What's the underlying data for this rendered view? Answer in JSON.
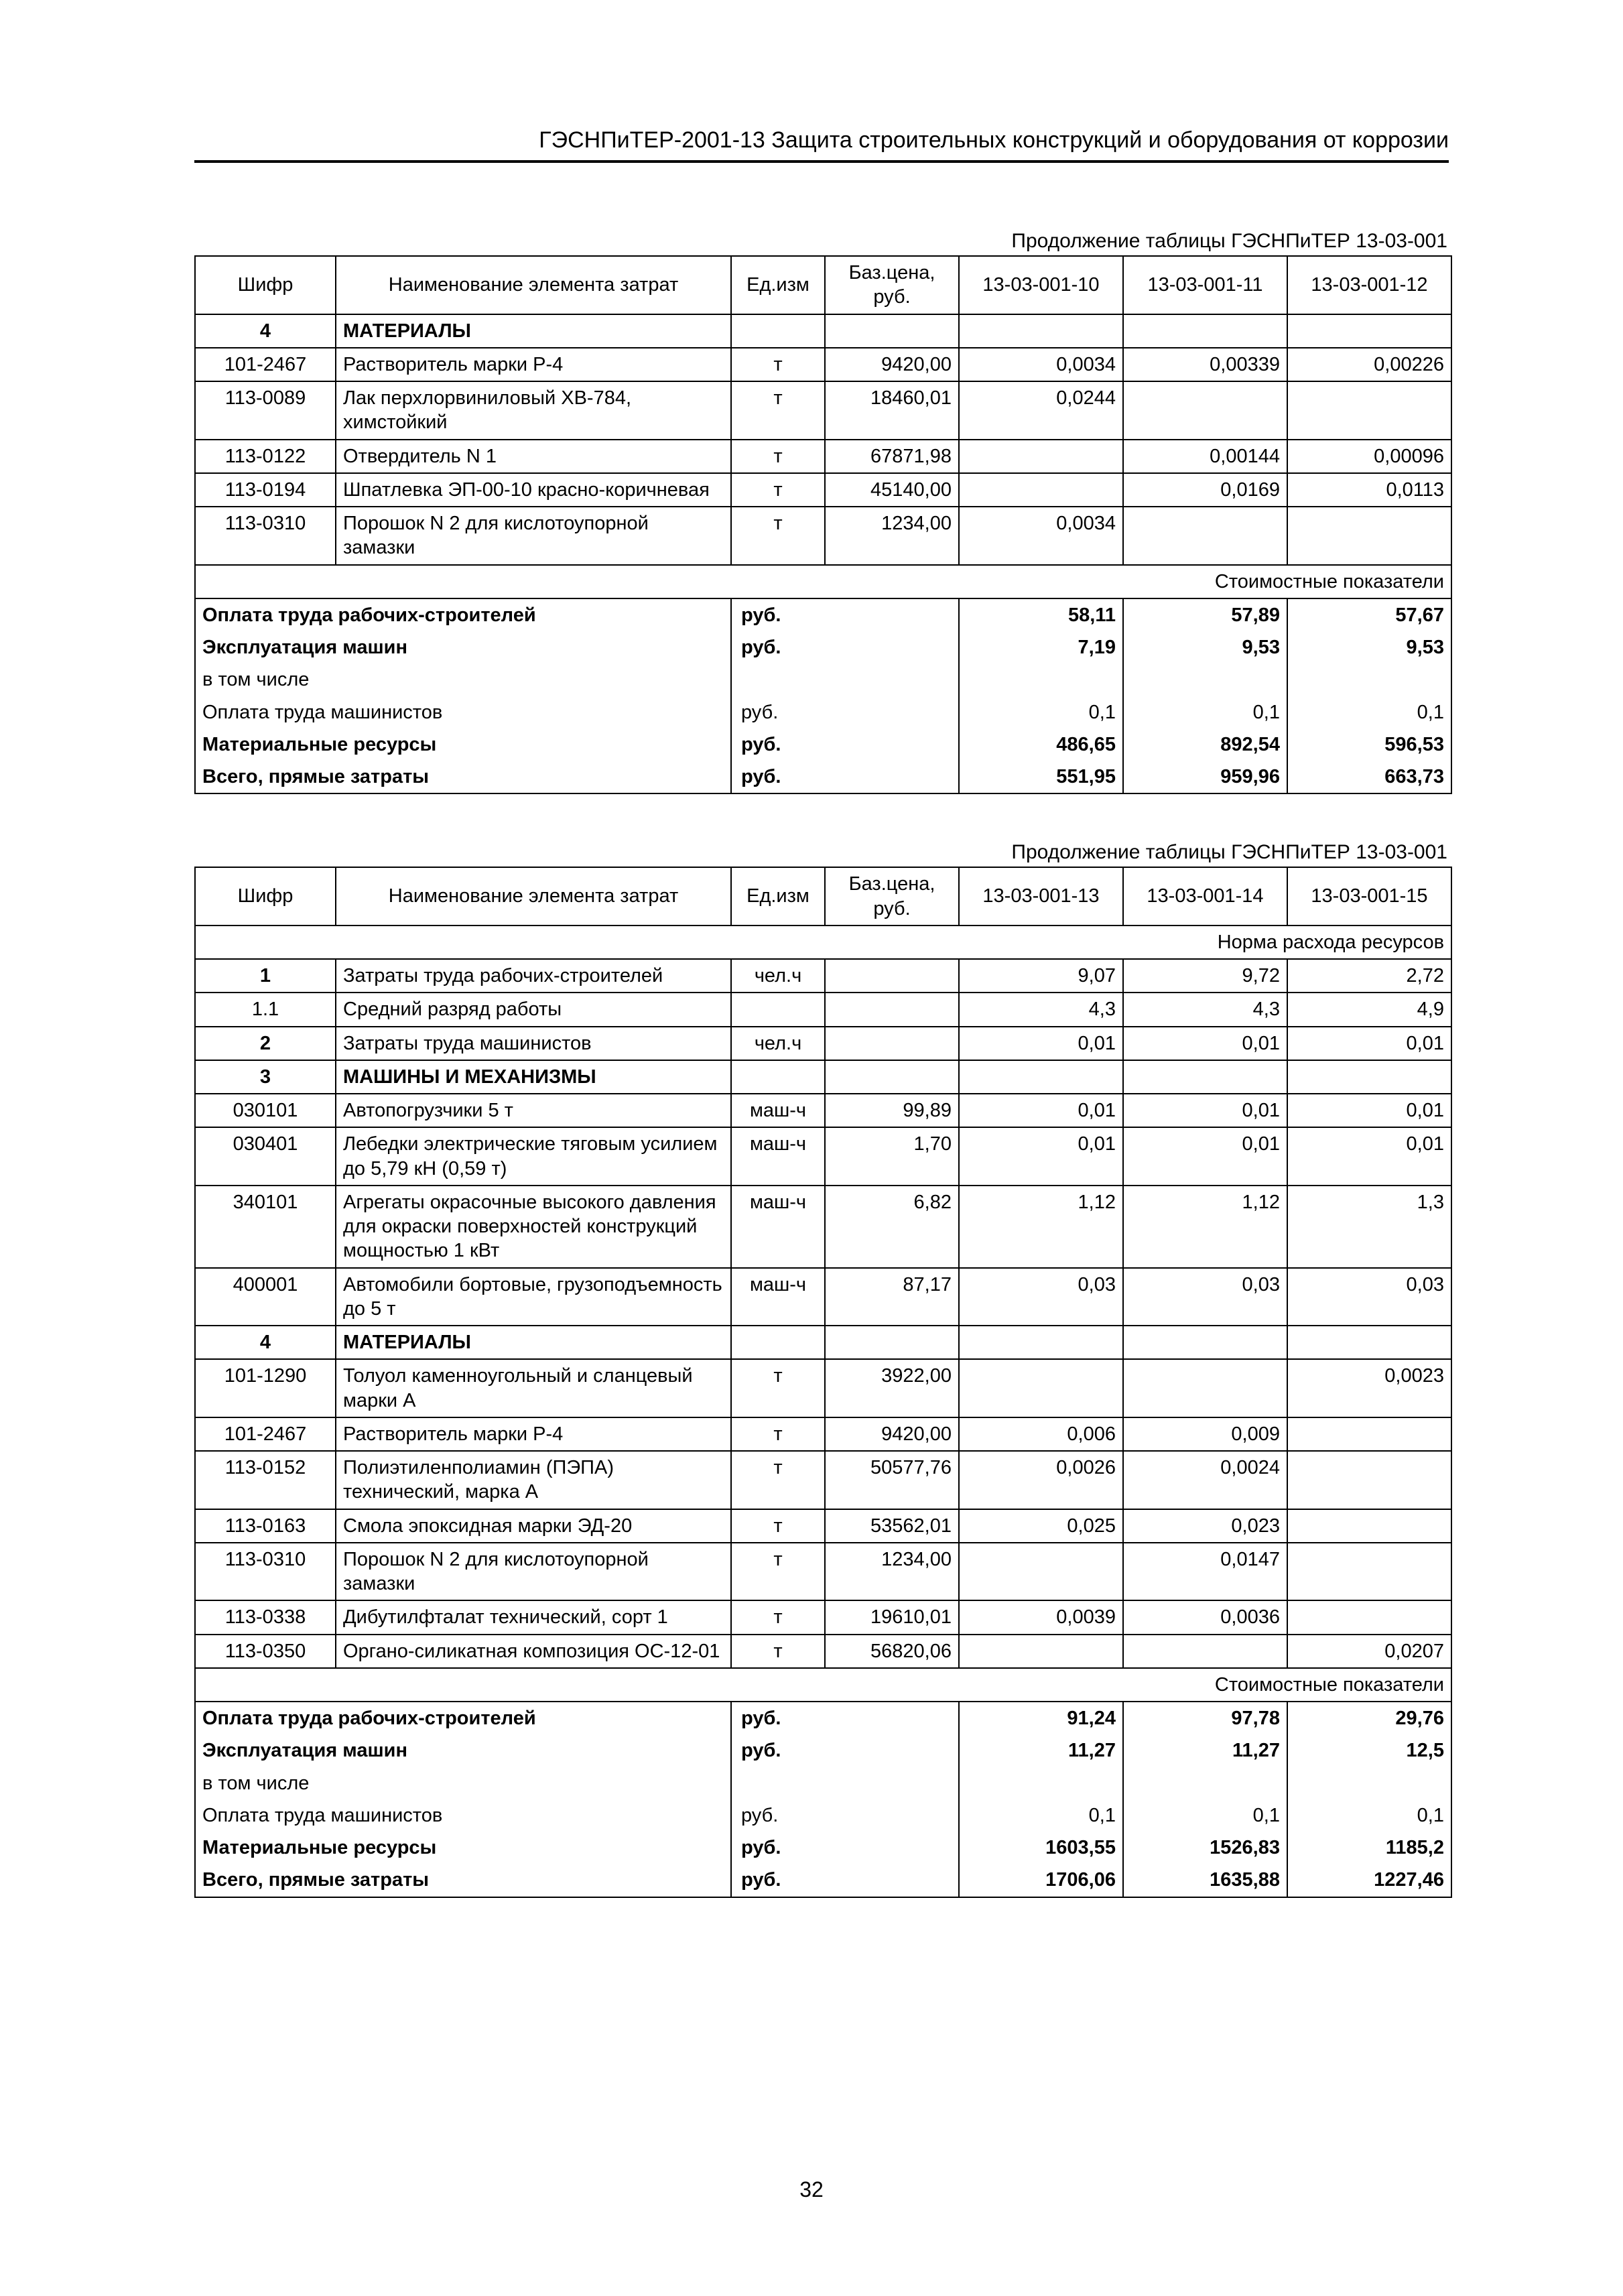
{
  "header": "ГЭСНПиТЕР-2001-13 Защита строительных конструкций и оборудования от коррозии",
  "page_number": "32",
  "tables": [
    {
      "continuation": "Продолжение таблицы ГЭСНПиТЕР 13-03-001",
      "head": {
        "code": "Шифр",
        "name": "Наименование элемента затрат",
        "unit": "Ед.изм",
        "base": "Баз.цена, руб.",
        "cols": [
          "13-03-001-10",
          "13-03-001-11",
          "13-03-001-12"
        ]
      },
      "sections": [
        {
          "num": "4",
          "title": "МАТЕРИАЛЫ",
          "rows": [
            {
              "code": "101-2467",
              "name": "Растворитель марки Р-4",
              "unit": "т",
              "base": "9420,00",
              "v": [
                "0,0034",
                "0,00339",
                "0,00226"
              ]
            },
            {
              "code": "113-0089",
              "name": "Лак перхлорвиниловый ХВ-784, химстойкий",
              "unit": "т",
              "base": "18460,01",
              "v": [
                "0,0244",
                "",
                ""
              ]
            },
            {
              "code": "113-0122",
              "name": "Отвердитель N 1",
              "unit": "т",
              "base": "67871,98",
              "v": [
                "",
                "0,00144",
                "0,00096"
              ]
            },
            {
              "code": "113-0194",
              "name": "Шпатлевка ЭП-00-10 красно-коричневая",
              "unit": "т",
              "base": "45140,00",
              "v": [
                "",
                "0,0169",
                "0,0113"
              ]
            },
            {
              "code": "113-0310",
              "name": "Порошок N 2 для кислотоупорной замазки",
              "unit": "т",
              "base": "1234,00",
              "v": [
                "0,0034",
                "",
                ""
              ]
            }
          ]
        }
      ],
      "span_label": "Стоимостные показатели",
      "summary": [
        {
          "label": "Оплата труда рабочих-строителей",
          "unit": "руб.",
          "v": [
            "58,11",
            "57,89",
            "57,67"
          ],
          "bold": true
        },
        {
          "label": "Эксплуатация машин",
          "unit": "руб.",
          "v": [
            "7,19",
            "9,53",
            "9,53"
          ],
          "bold": true
        },
        {
          "label": "в том числе",
          "unit": "",
          "v": [
            "",
            "",
            ""
          ],
          "bold": false
        },
        {
          "label": "Оплата труда машинистов",
          "unit": "руб.",
          "v": [
            "0,1",
            "0,1",
            "0,1"
          ],
          "bold": false
        },
        {
          "label": "Материальные ресурсы",
          "unit": "руб.",
          "v": [
            "486,65",
            "892,54",
            "596,53"
          ],
          "bold": true
        },
        {
          "label": "Всего, прямые затраты",
          "unit": "руб.",
          "v": [
            "551,95",
            "959,96",
            "663,73"
          ],
          "bold": true
        }
      ]
    },
    {
      "continuation": "Продолжение таблицы ГЭСНПиТЕР 13-03-001",
      "head": {
        "code": "Шифр",
        "name": "Наименование элемента затрат",
        "unit": "Ед.изм",
        "base": "Баз.цена, руб.",
        "cols": [
          "13-03-001-13",
          "13-03-001-14",
          "13-03-001-15"
        ]
      },
      "pre_span": "Норма расхода ресурсов",
      "sections": [
        {
          "num": "1",
          "title": "Затраты труда рабочих-строителей",
          "unit": "чел.ч",
          "v": [
            "9,07",
            "9,72",
            "2,72"
          ],
          "subrows": [
            {
              "code": "1.1",
              "name": "Средний разряд работы",
              "unit": "",
              "base": "",
              "v": [
                "4,3",
                "4,3",
                "4,9"
              ]
            }
          ]
        },
        {
          "num": "2",
          "title": "Затраты труда машинистов",
          "unit": "чел.ч",
          "v": [
            "0,01",
            "0,01",
            "0,01"
          ]
        },
        {
          "num": "3",
          "title": "МАШИНЫ И МЕХАНИЗМЫ",
          "rows": [
            {
              "code": "030101",
              "name": "Автопогрузчики 5 т",
              "unit": "маш-ч",
              "base": "99,89",
              "v": [
                "0,01",
                "0,01",
                "0,01"
              ]
            },
            {
              "code": "030401",
              "name": "Лебедки электрические тяговым усилием до 5,79 кН (0,59 т)",
              "unit": "маш-ч",
              "base": "1,70",
              "v": [
                "0,01",
                "0,01",
                "0,01"
              ]
            },
            {
              "code": "340101",
              "name": "Агрегаты окрасочные высокого давления для окраски поверхностей конструкций мощностью 1 кВт",
              "unit": "маш-ч",
              "base": "6,82",
              "v": [
                "1,12",
                "1,12",
                "1,3"
              ]
            },
            {
              "code": "400001",
              "name": "Автомобили бортовые, грузоподъемность до 5 т",
              "unit": "маш-ч",
              "base": "87,17",
              "v": [
                "0,03",
                "0,03",
                "0,03"
              ]
            }
          ]
        },
        {
          "num": "4",
          "title": "МАТЕРИАЛЫ",
          "rows": [
            {
              "code": "101-1290",
              "name": "Толуол каменноугольный и сланцевый марки А",
              "unit": "т",
              "base": "3922,00",
              "v": [
                "",
                "",
                "0,0023"
              ]
            },
            {
              "code": "101-2467",
              "name": "Растворитель марки Р-4",
              "unit": "т",
              "base": "9420,00",
              "v": [
                "0,006",
                "0,009",
                ""
              ]
            },
            {
              "code": "113-0152",
              "name": "Полиэтиленполиамин (ПЭПА) технический, марка А",
              "unit": "т",
              "base": "50577,76",
              "v": [
                "0,0026",
                "0,0024",
                ""
              ]
            },
            {
              "code": "113-0163",
              "name": "Смола эпоксидная марки ЭД-20",
              "unit": "т",
              "base": "53562,01",
              "v": [
                "0,025",
                "0,023",
                ""
              ]
            },
            {
              "code": "113-0310",
              "name": "Порошок N 2 для кислотоупорной замазки",
              "unit": "т",
              "base": "1234,00",
              "v": [
                "",
                "0,0147",
                ""
              ]
            },
            {
              "code": "113-0338",
              "name": "Дибутилфталат технический, сорт 1",
              "unit": "т",
              "base": "19610,01",
              "v": [
                "0,0039",
                "0,0036",
                ""
              ]
            },
            {
              "code": "113-0350",
              "name": "Органо-силикатная композиция ОС-12-01",
              "unit": "т",
              "base": "56820,06",
              "v": [
                "",
                "",
                "0,0207"
              ]
            }
          ]
        }
      ],
      "span_label": "Стоимостные показатели",
      "summary": [
        {
          "label": "Оплата труда рабочих-строителей",
          "unit": "руб.",
          "v": [
            "91,24",
            "97,78",
            "29,76"
          ],
          "bold": true
        },
        {
          "label": "Эксплуатация машин",
          "unit": "руб.",
          "v": [
            "11,27",
            "11,27",
            "12,5"
          ],
          "bold": true
        },
        {
          "label": "в том числе",
          "unit": "",
          "v": [
            "",
            "",
            ""
          ],
          "bold": false
        },
        {
          "label": "Оплата труда машинистов",
          "unit": "руб.",
          "v": [
            "0,1",
            "0,1",
            "0,1"
          ],
          "bold": false
        },
        {
          "label": "Материальные ресурсы",
          "unit": "руб.",
          "v": [
            "1603,55",
            "1526,83",
            "1185,2"
          ],
          "bold": true
        },
        {
          "label": "Всего, прямые затраты",
          "unit": "руб.",
          "v": [
            "1706,06",
            "1635,88",
            "1227,46"
          ],
          "bold": true
        }
      ]
    }
  ]
}
